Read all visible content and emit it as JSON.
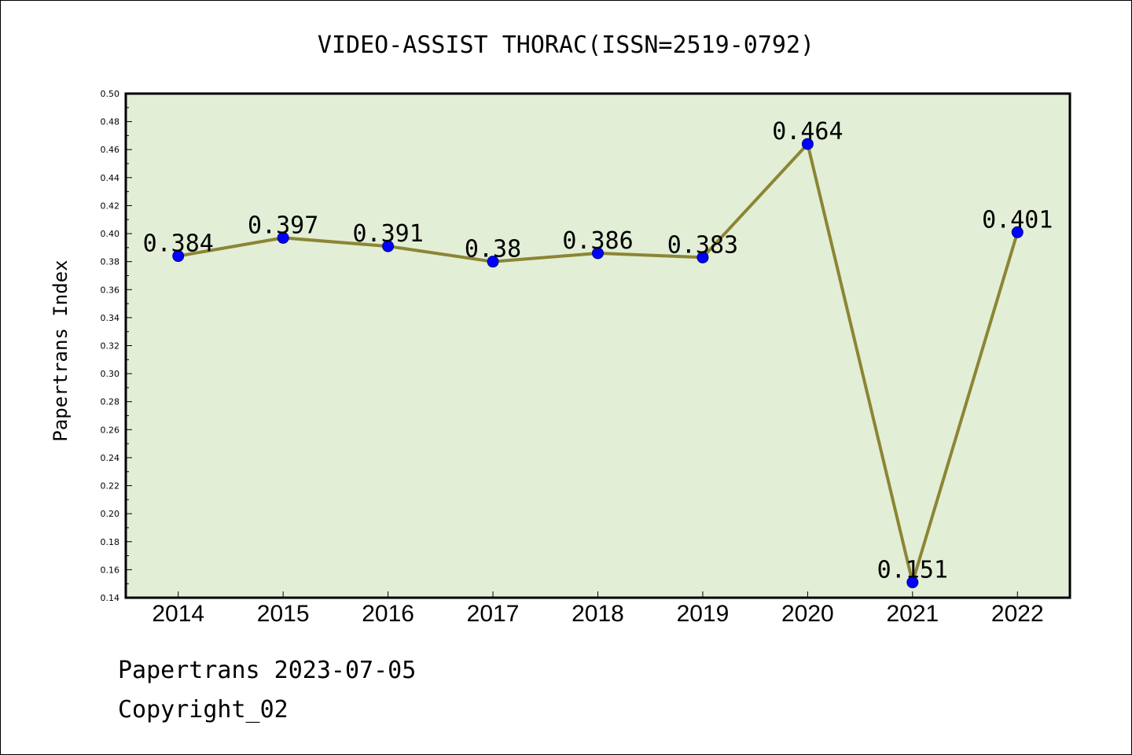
{
  "chart_data": {
    "type": "line",
    "title": "VIDEO-ASSIST THORAC(ISSN=2519-0792)",
    "ylabel": "Papertrans Index",
    "xlabel": "",
    "categories": [
      "2014",
      "2015",
      "2016",
      "2017",
      "2018",
      "2019",
      "2020",
      "2021",
      "2022"
    ],
    "series": [
      {
        "values": [
          0.384,
          0.397,
          0.391,
          0.38,
          0.386,
          0.383,
          0.464,
          0.151,
          0.401
        ],
        "labels": [
          "0.384",
          "0.397",
          "0.391",
          "0.38",
          "0.386",
          "0.383",
          "0.464",
          "0.151",
          "0.401"
        ]
      }
    ],
    "ylim": [
      0.14,
      0.5
    ],
    "yticks": [
      "0.14",
      "0.16",
      "0.18",
      "0.20",
      "0.22",
      "0.24",
      "0.26",
      "0.28",
      "0.30",
      "0.32",
      "0.34",
      "0.36",
      "0.38",
      "0.40",
      "0.42",
      "0.44",
      "0.46",
      "0.48",
      "0.50"
    ],
    "grid": false,
    "legend": "none",
    "colors": {
      "plot_background": "#e2efd6",
      "line": "#8c8535",
      "marker": "#0000ff"
    }
  },
  "footer": {
    "line1": "Papertrans 2023-07-05",
    "line2": "Copyright_02"
  }
}
